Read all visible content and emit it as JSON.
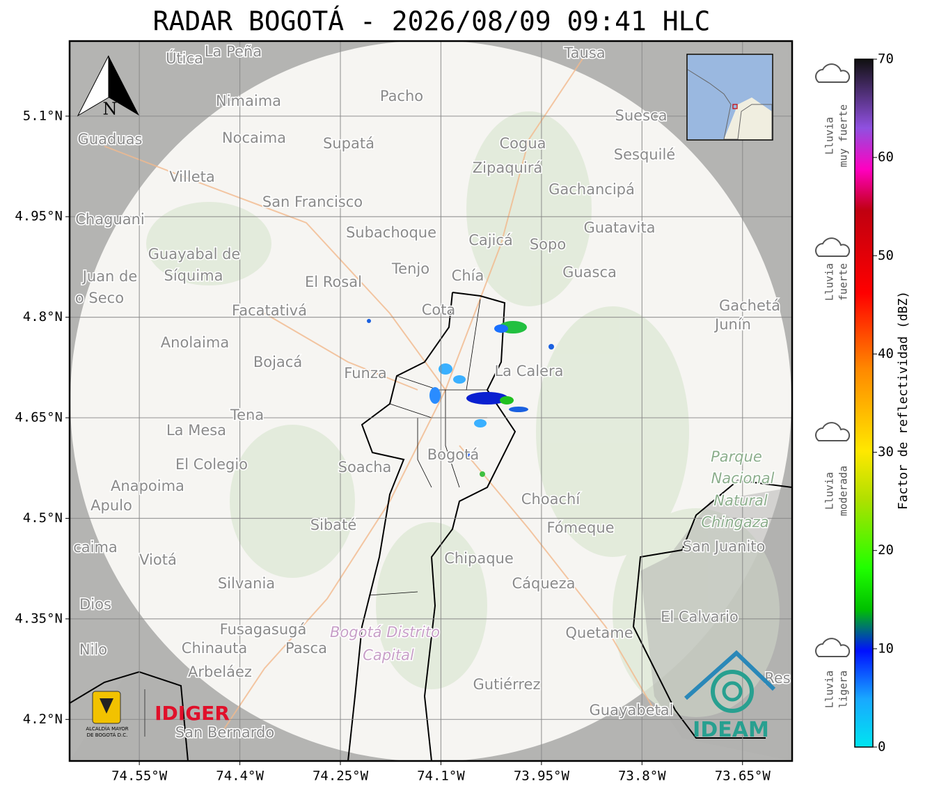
{
  "title": "RADAR BOGOTÁ - 2026/08/09 09:41 HLC",
  "map": {
    "lon_lim": [
      -74.654,
      -73.576
    ],
    "lat_lim": [
      4.138,
      5.212
    ],
    "lon_ticks": [
      {
        "value": -74.55,
        "label": "74.55°W"
      },
      {
        "value": -74.4,
        "label": "74.4°W"
      },
      {
        "value": -74.25,
        "label": "74.25°W"
      },
      {
        "value": -74.1,
        "label": "74.1°W"
      },
      {
        "value": -73.95,
        "label": "73.95°W"
      },
      {
        "value": -73.8,
        "label": "73.8°W"
      },
      {
        "value": -73.65,
        "label": "73.65°W"
      }
    ],
    "lat_ticks": [
      {
        "value": 5.1,
        "label": "5.1°N"
      },
      {
        "value": 4.95,
        "label": "4.95°N"
      },
      {
        "value": 4.8,
        "label": "4.8°N"
      },
      {
        "value": 4.65,
        "label": "4.65°N"
      },
      {
        "value": 4.5,
        "label": "4.5°N"
      },
      {
        "value": 4.35,
        "label": "4.35°N"
      },
      {
        "value": 4.2,
        "label": "4.2°N"
      }
    ],
    "north": "N",
    "places": [
      "Útica",
      "La Peña",
      "Tausa",
      "Pacho",
      "Nimaima",
      "Guaduas",
      "Nocaima",
      "Supatá",
      "Cogua",
      "Suesca",
      "Sesquilé",
      "Zipaquirá",
      "Villeta",
      "Gachancipá",
      "San Francisco",
      "Chaguani",
      "Guatavita",
      "Subachoque",
      "Cajicá",
      "Sopo",
      "Guayabal de",
      "Síquima",
      "Juan de",
      "o Seco",
      "Tenjo",
      "Chía",
      "Guasca",
      "El Rosal",
      "Facatativá",
      "Cota",
      "Gachetá",
      "Junín",
      "Anolaima",
      "Bojacá",
      "Funza",
      "La Calera",
      "Tena",
      "La Mesa",
      "Bogotá",
      "Soacha",
      "El Colegio",
      "Anapoima",
      "Apulo",
      "Choachí",
      "Sibaté",
      "Fómeque",
      "San Juanito",
      "caima",
      "Viotá",
      "Chipaque",
      "Silvania",
      "Cáqueza",
      "Dios",
      "El Calvario",
      "Fusagasugá",
      "Quetame",
      "Nilo",
      "Chinauta",
      "Pasca",
      "Arbeláez",
      "Gutiérrez",
      "Res",
      "Guayabetal",
      "San Bernardo"
    ],
    "park": [
      "Parque",
      "Nacional",
      "Natural",
      "Chingaza"
    ],
    "district": [
      "Bogotá Distrito",
      "Capital"
    ]
  },
  "colorbar": {
    "label": "Factor de reflectividad (dBZ)",
    "lim": [
      0,
      70
    ],
    "ticks": [
      0,
      10,
      20,
      30,
      40,
      50,
      60,
      70
    ]
  },
  "rain_legend": [
    [
      "Lluvia",
      "muy fuerte"
    ],
    [
      "Lluvia",
      "fuerte"
    ],
    [
      "Lluvia",
      "moderada"
    ],
    [
      "Lluvia",
      "ligera"
    ]
  ],
  "logos": {
    "alcaldia": [
      "ALCALDÍA MAYOR",
      "DE BOGOTÁ D.C."
    ],
    "idiger": "IDIGER",
    "ideam": "IDEAM"
  }
}
